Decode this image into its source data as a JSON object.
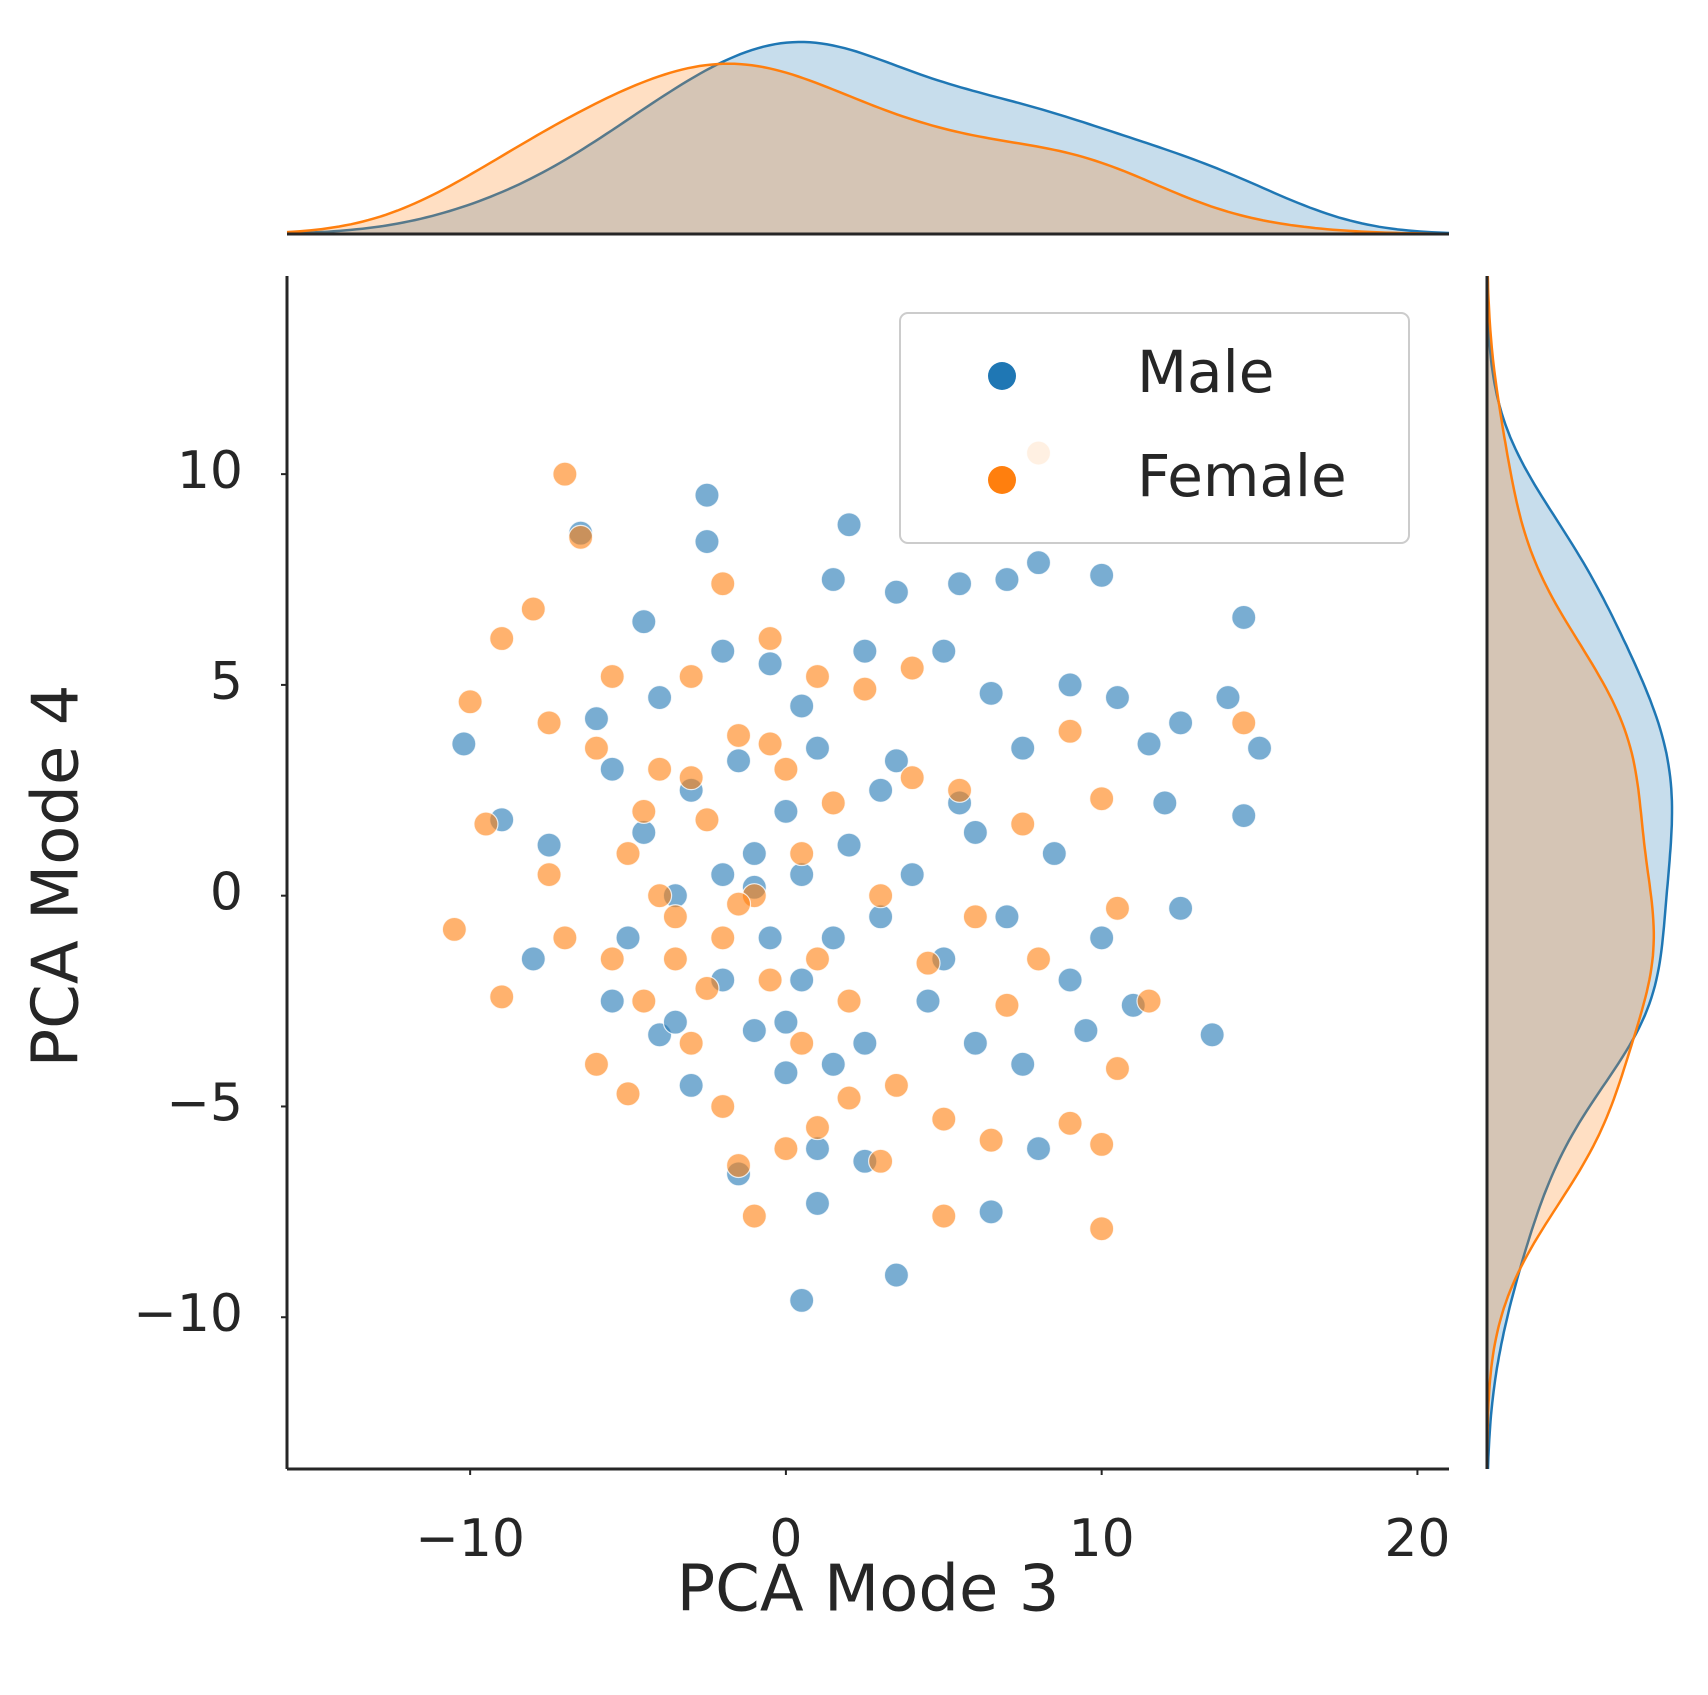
{
  "chart_data": {
    "type": "scatter",
    "xlabel": "PCA Mode 3",
    "ylabel": "PCA Mode 4",
    "xlim": [
      -15.8,
      21
    ],
    "ylim": [
      -13.6,
      14.7
    ],
    "xticks": [
      {
        "value": -10,
        "label": "−10"
      },
      0,
      10,
      20
    ],
    "yticks": [
      {
        "value": -10,
        "label": "−10"
      },
      {
        "value": -5,
        "label": "−5"
      },
      0,
      5,
      10
    ],
    "grid": false,
    "legend": "upper right",
    "marginal": "kde",
    "series": [
      {
        "name": "Male",
        "color": "#1f77b4",
        "x": [
          -10.2,
          -9,
          -8,
          -7.5,
          -6.5,
          -6,
          -5.5,
          -5,
          -4.5,
          -4.5,
          -4,
          -3.5,
          -3,
          -3,
          -2.5,
          -2.5,
          -2,
          -2,
          -1.5,
          -1.5,
          -1,
          -1,
          -0.5,
          -0.5,
          0,
          0,
          0.5,
          0.5,
          0.5,
          1,
          1,
          1,
          1.5,
          1.5,
          2,
          2,
          2.5,
          2.5,
          3,
          3.5,
          3.5,
          3.5,
          4,
          4.5,
          5,
          5,
          5.5,
          5.5,
          6,
          6,
          6.5,
          6.5,
          7,
          7,
          7.5,
          7.5,
          8,
          8,
          8.5,
          9,
          9,
          9.5,
          10,
          10,
          10.5,
          11,
          11.5,
          12,
          12.5,
          12.5,
          13.5,
          14,
          14.5,
          14.5,
          15,
          0.5,
          -3.5,
          -2,
          1.5,
          2.5,
          -4,
          -5.5,
          0,
          3,
          -1
        ],
        "y": [
          3.6,
          1.8,
          -1.5,
          1.2,
          8.6,
          4.2,
          3,
          -1,
          6.5,
          1.5,
          -3.3,
          0,
          2.5,
          -4.5,
          9.5,
          8.4,
          -2,
          5.8,
          3.2,
          -6.6,
          1,
          -3.2,
          5.5,
          -1,
          2,
          -4.2,
          4.5,
          0.5,
          -2,
          -6,
          -7.3,
          3.5,
          7.5,
          -1,
          8.8,
          1.2,
          5.8,
          -3.5,
          -0.5,
          7.2,
          -9,
          3.2,
          0.5,
          -2.5,
          5.8,
          -1.5,
          7.4,
          2.2,
          -3.5,
          1.5,
          4.8,
          -7.5,
          -0.5,
          7.5,
          -4,
          3.5,
          -6,
          7.9,
          1,
          -2,
          5,
          -3.2,
          7.6,
          -1,
          4.7,
          -2.6,
          3.6,
          2.2,
          4.1,
          -0.3,
          -3.3,
          4.7,
          1.9,
          6.6,
          3.5,
          -9.6,
          -3,
          0.5,
          -4,
          -6.3,
          4.7,
          -2.5,
          -3,
          2.5,
          0.2
        ]
      },
      {
        "name": "Female",
        "color": "#ff7f0e",
        "x": [
          -10.5,
          -10,
          -9.5,
          -9,
          -9,
          -8,
          -7.5,
          -7,
          -6.5,
          -7,
          -6,
          -6,
          -5.5,
          -5,
          -5,
          -4.5,
          -4,
          -4,
          -3.5,
          -3,
          -3,
          -2.5,
          -2,
          -2,
          -2,
          -1.5,
          -1.5,
          -1,
          -1,
          -0.5,
          -0.5,
          0,
          0,
          0.5,
          0.5,
          1,
          1,
          1.5,
          2,
          2.5,
          3,
          3,
          3.5,
          4,
          4,
          4.5,
          5,
          5,
          5.5,
          6,
          6.5,
          7,
          7.5,
          8,
          8,
          9,
          9,
          10,
          10,
          10,
          10.5,
          10.5,
          11.5,
          14.5,
          -7.5,
          -3.5,
          -2.5,
          -1.5,
          -4.5,
          -0.5,
          1,
          2,
          -5.5,
          -3
        ],
        "y": [
          -0.8,
          4.6,
          1.7,
          -2.4,
          6.1,
          6.8,
          4.1,
          10,
          8.5,
          -1,
          3.5,
          -4,
          5.2,
          1,
          -4.7,
          -2.5,
          3,
          0,
          -1.5,
          5.2,
          -3.5,
          1.8,
          7.4,
          -1,
          -5,
          3.8,
          -6.4,
          0,
          -7.6,
          6.1,
          -2,
          3,
          -6,
          1,
          -3.5,
          5.2,
          -5.5,
          2.2,
          -2.5,
          4.9,
          0,
          -6.3,
          -4.5,
          5.4,
          2.8,
          -1.6,
          -5.3,
          -7.6,
          2.5,
          -0.5,
          -5.8,
          -2.6,
          1.7,
          10.5,
          -1.5,
          3.9,
          -5.4,
          2.3,
          -7.9,
          -5.9,
          -4.1,
          -0.3,
          -2.5,
          4.1,
          0.5,
          -0.5,
          -2.2,
          -0.2,
          2,
          3.6,
          -1.5,
          -4.8,
          -1.5,
          2.8
        ]
      }
    ]
  }
}
